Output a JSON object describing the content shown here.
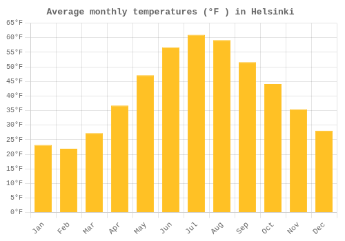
{
  "chart_data": {
    "type": "bar",
    "title": "Average monthly temperatures (°F ) in Helsinki",
    "categories": [
      "Jan",
      "Feb",
      "Mar",
      "Apr",
      "May",
      "Jun",
      "Jul",
      "Aug",
      "Sep",
      "Oct",
      "Nov",
      "Dec"
    ],
    "values": [
      23.2,
      21.9,
      27.3,
      36.7,
      47.1,
      56.7,
      61.0,
      59.2,
      51.6,
      44.1,
      35.4,
      28.1
    ],
    "color": "#FFC125",
    "ylim": [
      0,
      65
    ],
    "yticks": [
      {
        "value": 0,
        "label": "0°F"
      },
      {
        "value": 5,
        "label": "5°F"
      },
      {
        "value": 10,
        "label": "10°F"
      },
      {
        "value": 15,
        "label": "15°F"
      },
      {
        "value": 20,
        "label": "20°F"
      },
      {
        "value": 25,
        "label": "25°F"
      },
      {
        "value": 30,
        "label": "30°F"
      },
      {
        "value": 35,
        "label": "35°F"
      },
      {
        "value": 40,
        "label": "40°F"
      },
      {
        "value": 45,
        "label": "45°F"
      },
      {
        "value": 50,
        "label": "50°F"
      },
      {
        "value": 55,
        "label": "55°F"
      },
      {
        "value": 60,
        "label": "60°F"
      },
      {
        "value": 65,
        "label": "65°F"
      }
    ],
    "grid": true
  }
}
